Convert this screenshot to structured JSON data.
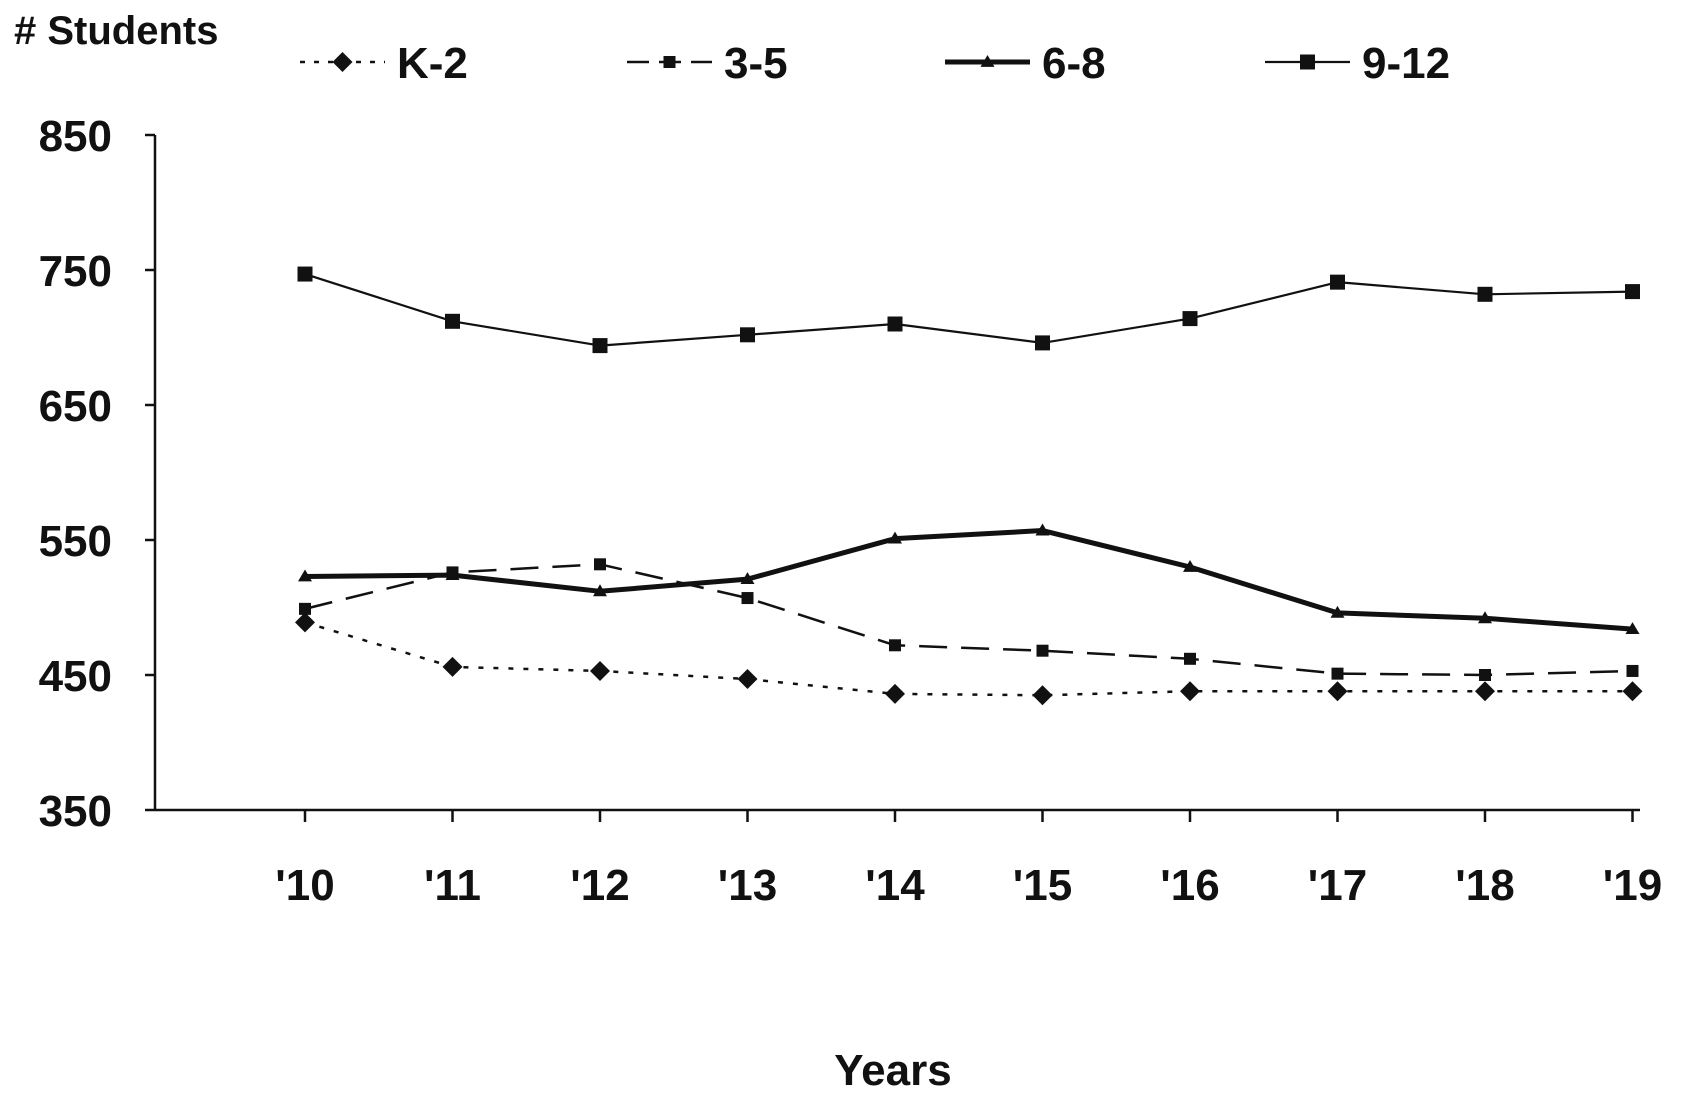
{
  "chart_data": {
    "type": "line",
    "ylabel": "# Students",
    "xlabel": "Years",
    "ylim": [
      350,
      850
    ],
    "yticks": [
      350,
      450,
      550,
      650,
      750,
      850
    ],
    "categories": [
      "'10",
      "'11",
      "'12",
      "'13",
      "'14",
      "'15",
      "'16",
      "'17",
      "'18",
      "'19"
    ],
    "grid": false,
    "legend_position": "top",
    "series": [
      {
        "name": "K-2",
        "marker": "diamond",
        "line_style": "dotted",
        "values": [
          489,
          456,
          453,
          447,
          436,
          435,
          438,
          438,
          438,
          438
        ]
      },
      {
        "name": "3-5",
        "marker": "small-square",
        "line_style": "dashed",
        "values": [
          499,
          526,
          532,
          507,
          472,
          468,
          462,
          451,
          450,
          453
        ]
      },
      {
        "name": "6-8",
        "marker": "triangle",
        "line_style": "thick-solid",
        "values": [
          523,
          524,
          512,
          521,
          551,
          557,
          530,
          496,
          492,
          484
        ]
      },
      {
        "name": "9-12",
        "marker": "square",
        "line_style": "solid",
        "values": [
          747,
          712,
          694,
          702,
          710,
          696,
          714,
          741,
          732,
          734
        ]
      }
    ],
    "colors": {
      "line": "#111111",
      "axis": "#111111",
      "background": "#ffffff"
    }
  }
}
